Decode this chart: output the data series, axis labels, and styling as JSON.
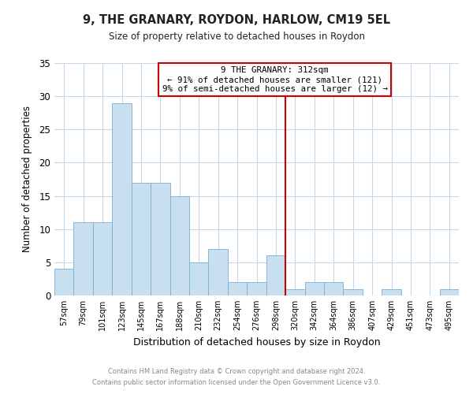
{
  "title": "9, THE GRANARY, ROYDON, HARLOW, CM19 5EL",
  "subtitle": "Size of property relative to detached houses in Roydon",
  "xlabel": "Distribution of detached houses by size in Roydon",
  "ylabel": "Number of detached properties",
  "bar_color": "#c8dff0",
  "bar_edge_color": "#7aafd4",
  "bin_labels": [
    "57sqm",
    "79sqm",
    "101sqm",
    "123sqm",
    "145sqm",
    "167sqm",
    "188sqm",
    "210sqm",
    "232sqm",
    "254sqm",
    "276sqm",
    "298sqm",
    "320sqm",
    "342sqm",
    "364sqm",
    "386sqm",
    "407sqm",
    "429sqm",
    "451sqm",
    "473sqm",
    "495sqm"
  ],
  "bar_values": [
    4,
    11,
    11,
    29,
    17,
    17,
    15,
    5,
    7,
    2,
    2,
    6,
    1,
    2,
    2,
    1,
    0,
    1,
    0,
    0,
    1
  ],
  "vline_color": "#cc0000",
  "annotation_line1": "9 THE GRANARY: 312sqm",
  "annotation_line2": "← 91% of detached houses are smaller (121)",
  "annotation_line3": "9% of semi-detached houses are larger (12) →",
  "annotation_box_color": "#ffffff",
  "annotation_box_edge": "#cc0000",
  "ylim": [
    0,
    35
  ],
  "yticks": [
    0,
    5,
    10,
    15,
    20,
    25,
    30,
    35
  ],
  "footer1": "Contains HM Land Registry data © Crown copyright and database right 2024.",
  "footer2": "Contains public sector information licensed under the Open Government Licence v3.0.",
  "bg_color": "#ffffff",
  "grid_color": "#c8d8e8"
}
